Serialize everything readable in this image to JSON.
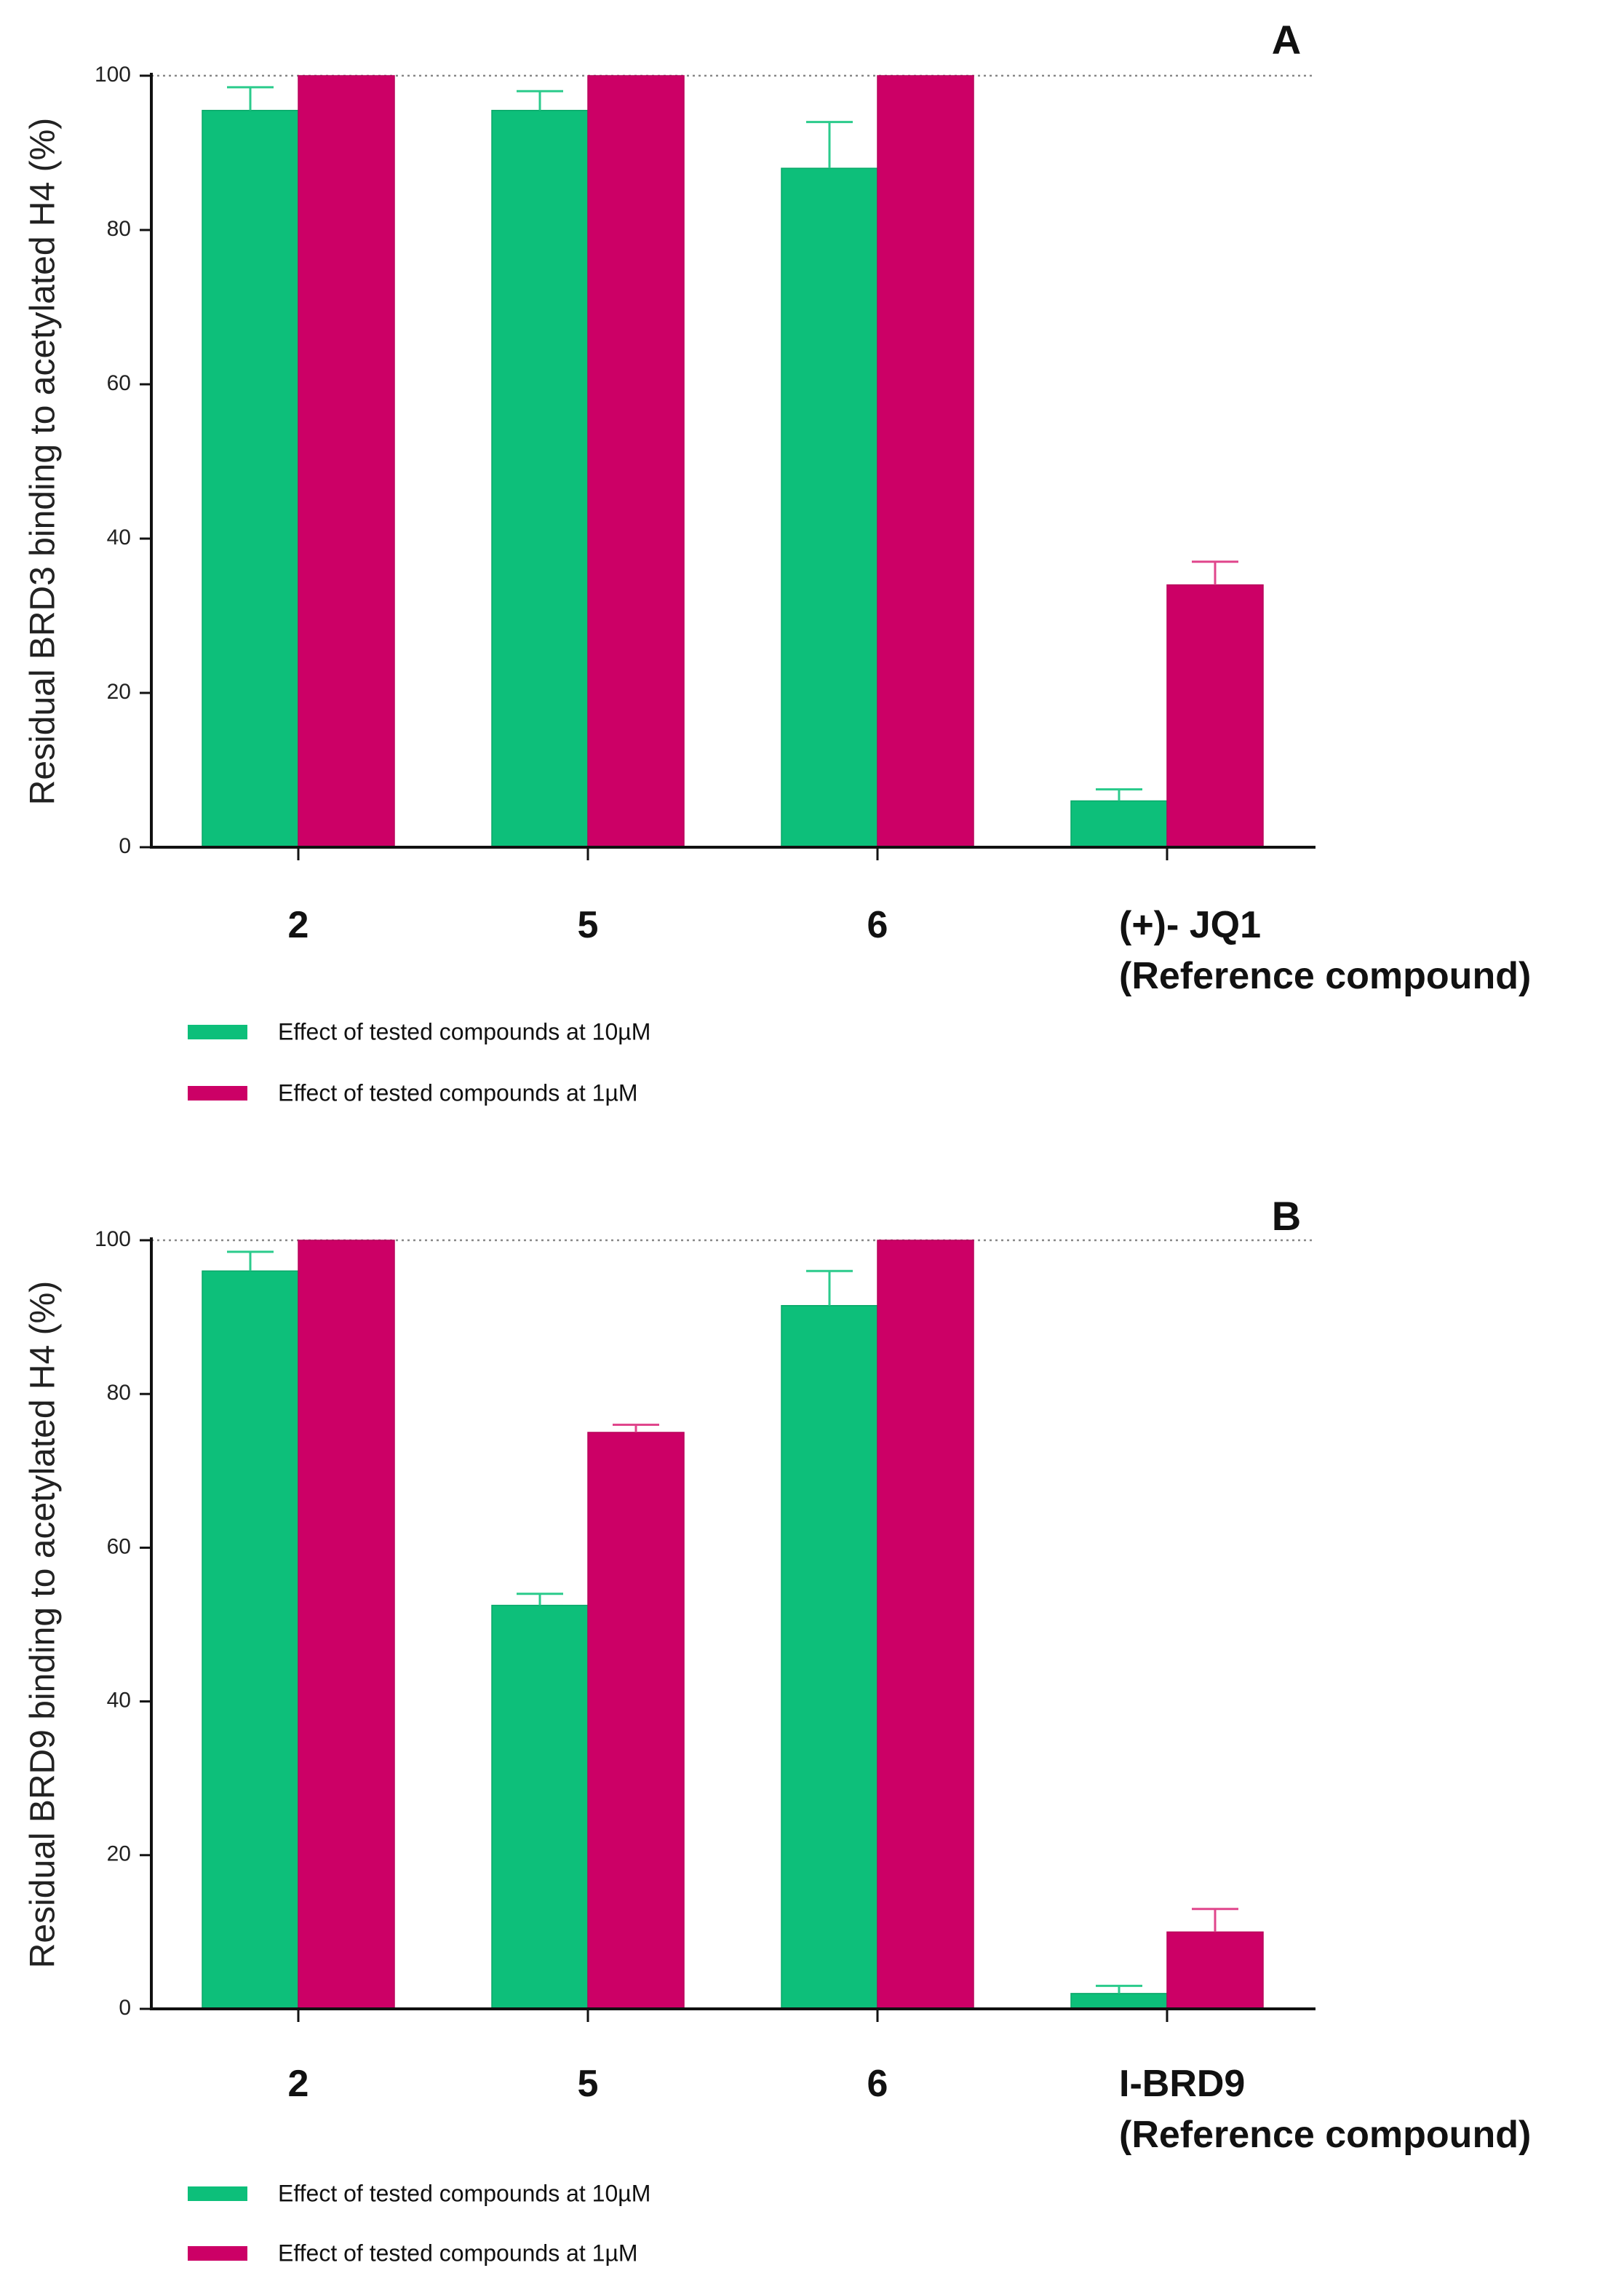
{
  "chart_data": [
    {
      "type": "bar",
      "panel_label": "A",
      "ylabel": "Residual BRD3 binding to acetylated H4 (%)",
      "ylim": [
        0,
        100
      ],
      "yticks": [
        0,
        20,
        40,
        60,
        80,
        100
      ],
      "reference_line": 100,
      "categories": [
        [
          "2"
        ],
        [
          "5"
        ],
        [
          "6"
        ],
        [
          "(+)- JQ1",
          "(Reference compound)"
        ]
      ],
      "series": [
        {
          "name": "Effect of tested compounds at 10µM",
          "color": "#0DBF7A",
          "values": [
            95.5,
            95.5,
            88,
            6
          ],
          "errors": [
            3,
            2.5,
            6,
            1.5
          ]
        },
        {
          "name": "Effect of tested compounds at 1µM",
          "color": "#CC0066",
          "values": [
            100,
            100,
            100,
            34
          ],
          "errors": [
            0,
            0,
            0,
            3
          ]
        }
      ]
    },
    {
      "type": "bar",
      "panel_label": "B",
      "ylabel": "Residual BRD9 binding to acetylated H4 (%)",
      "ylim": [
        0,
        100
      ],
      "yticks": [
        0,
        20,
        40,
        60,
        80,
        100
      ],
      "reference_line": 100,
      "categories": [
        [
          "2"
        ],
        [
          "5"
        ],
        [
          "6"
        ],
        [
          "I-BRD9",
          "(Reference compound)"
        ]
      ],
      "series": [
        {
          "name": "Effect of tested compounds at 10µM",
          "color": "#0DBF7A",
          "values": [
            96,
            52.5,
            91.5,
            2
          ],
          "errors": [
            2.5,
            1.5,
            4.5,
            1
          ]
        },
        {
          "name": "Effect of tested compounds at 1µM",
          "color": "#CC0066",
          "values": [
            100,
            75,
            100,
            10
          ],
          "errors": [
            0,
            1,
            0,
            3
          ]
        }
      ]
    }
  ]
}
